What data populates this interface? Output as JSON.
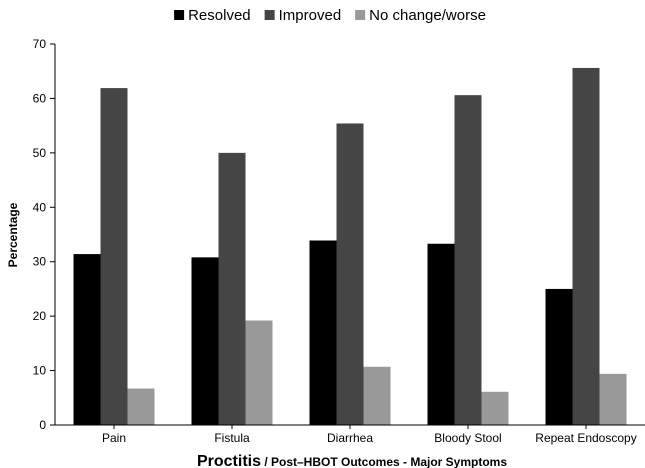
{
  "chart_data": {
    "type": "bar",
    "categories": [
      "Pain",
      "Fistula",
      "Diarrhea",
      "Bloody Stool",
      "Repeat Endoscopy"
    ],
    "series": [
      {
        "name": "Resolved",
        "color": "#000000",
        "values": [
          31.4,
          30.8,
          33.9,
          33.3,
          25.0
        ]
      },
      {
        "name": "Improved",
        "color": "#454545",
        "values": [
          61.9,
          50.0,
          55.4,
          60.6,
          65.6
        ]
      },
      {
        "name": "No change/worse",
        "color": "#999999",
        "values": [
          6.7,
          19.2,
          10.7,
          6.1,
          9.4
        ]
      }
    ],
    "ylabel": "Percentage",
    "xlabel_main": "Proctitis",
    "xlabel_sub": " / Post–HBOT Outcomes - Major Symptoms",
    "ylim": [
      0,
      70
    ],
    "yticks": [
      0,
      10,
      20,
      30,
      40,
      50,
      60,
      70
    ],
    "grid": false,
    "legend_position": "top"
  }
}
